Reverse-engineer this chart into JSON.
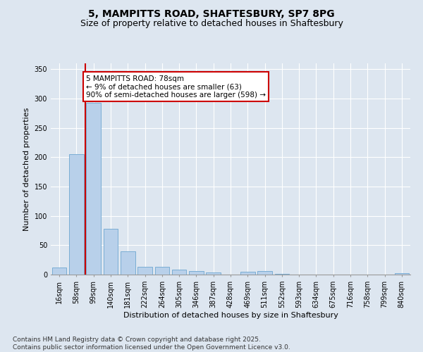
{
  "title_line1": "5, MAMPITTS ROAD, SHAFTESBURY, SP7 8PG",
  "title_line2": "Size of property relative to detached houses in Shaftesbury",
  "xlabel": "Distribution of detached houses by size in Shaftesbury",
  "ylabel": "Number of detached properties",
  "categories": [
    "16sqm",
    "58sqm",
    "99sqm",
    "140sqm",
    "181sqm",
    "222sqm",
    "264sqm",
    "305sqm",
    "346sqm",
    "387sqm",
    "428sqm",
    "469sqm",
    "511sqm",
    "552sqm",
    "593sqm",
    "634sqm",
    "675sqm",
    "716sqm",
    "758sqm",
    "799sqm",
    "840sqm"
  ],
  "values": [
    12,
    205,
    293,
    78,
    40,
    13,
    13,
    8,
    6,
    4,
    0,
    5,
    6,
    1,
    0,
    0,
    0,
    0,
    0,
    0,
    2
  ],
  "bar_color": "#b8d0ea",
  "bar_edge_color": "#7aadd4",
  "vline_x": 1.5,
  "vline_color": "#cc0000",
  "annotation_text": "5 MAMPITTS ROAD: 78sqm\n← 9% of detached houses are smaller (63)\n90% of semi-detached houses are larger (598) →",
  "annotation_box_color": "#ffffff",
  "annotation_box_edge": "#cc0000",
  "ylim": [
    0,
    360
  ],
  "yticks": [
    0,
    50,
    100,
    150,
    200,
    250,
    300,
    350
  ],
  "background_color": "#dde6f0",
  "plot_bg_color": "#dde6f0",
  "footer": "Contains HM Land Registry data © Crown copyright and database right 2025.\nContains public sector information licensed under the Open Government Licence v3.0.",
  "title_fontsize": 10,
  "subtitle_fontsize": 9,
  "axis_label_fontsize": 8,
  "tick_fontsize": 7,
  "annotation_fontsize": 7.5,
  "footer_fontsize": 6.5
}
